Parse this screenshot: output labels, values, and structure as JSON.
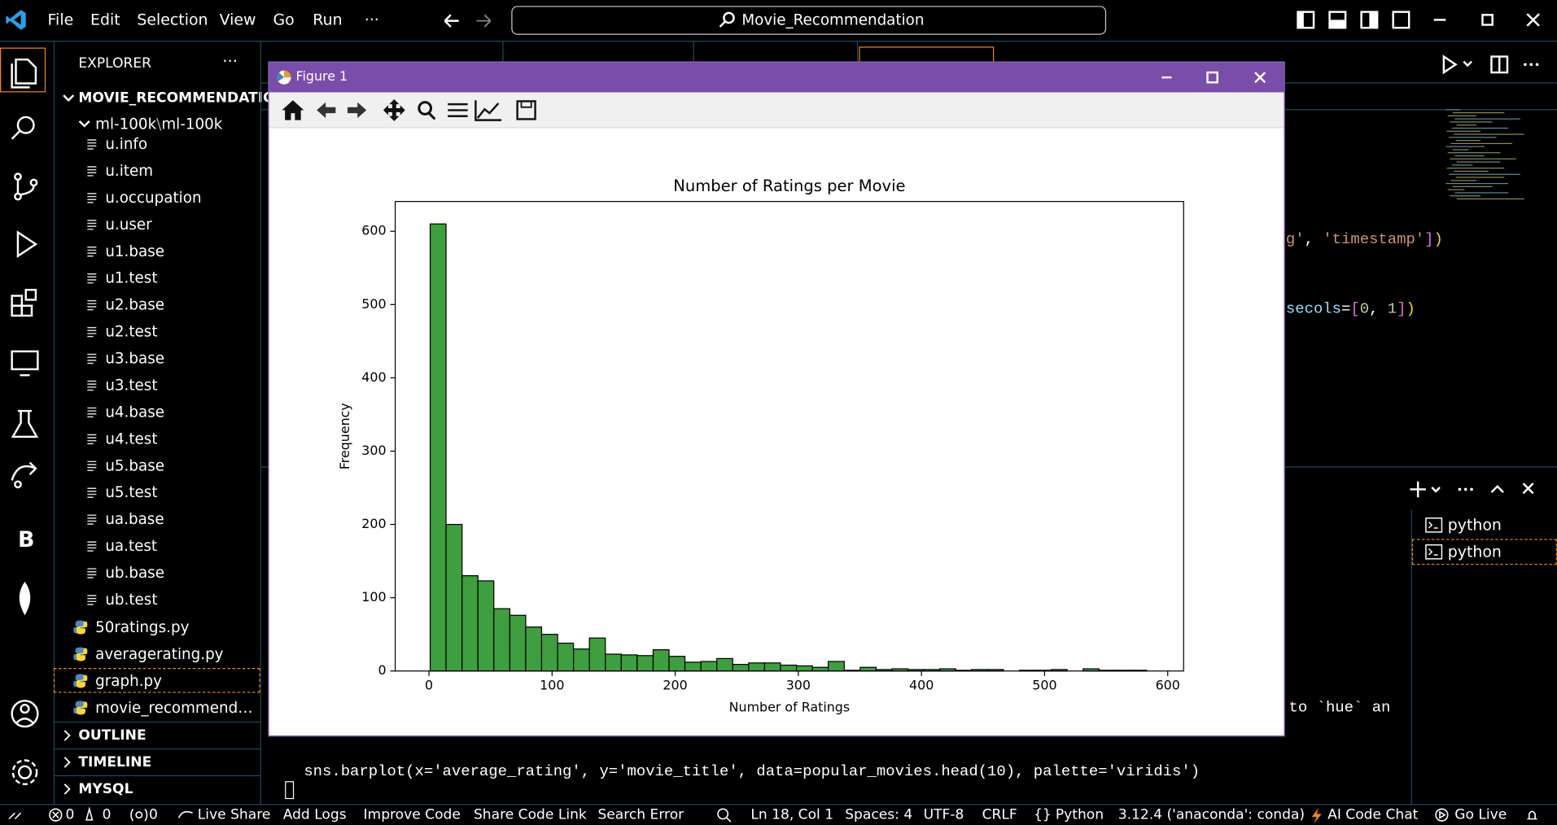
{
  "menu": {
    "items": [
      "File",
      "Edit",
      "Selection",
      "View",
      "Go",
      "Run",
      "···"
    ],
    "search": "Movie_Recommendation"
  },
  "activity_bar": {
    "extension_letter": "B"
  },
  "explorer": {
    "title": "EXPLORER",
    "more": "···",
    "project": "MOVIE_RECOMMENDATION",
    "folder": "ml-100k",
    "folder_sep": "\\",
    "subfolder": "ml-100k",
    "data_files": [
      "u.info",
      "u.item",
      "u.occupation",
      "u.user",
      "u1.base",
      "u1.test",
      "u2.base",
      "u2.test",
      "u3.base",
      "u3.test",
      "u4.base",
      "u4.test",
      "u5.base",
      "u5.test",
      "ua.base",
      "ua.test",
      "ub.base",
      "ub.test"
    ],
    "python_files": [
      "50ratings.py",
      "averagerating.py",
      "graph.py",
      "movie_recommender.py"
    ],
    "sections": [
      "OUTLINE",
      "TIMELINE",
      "MYSQL"
    ]
  },
  "editor": {
    "line_a": [
      "g'",
      ", ",
      "'timestamp'",
      "]",
      ")"
    ],
    "line_b": [
      "secols",
      "=",
      "[",
      "0",
      ", ",
      "1",
      "]",
      ")"
    ],
    "line_c": "to `hue` an"
  },
  "terminal": {
    "command": "sns.barplot(x='average_rating', y='movie_title', data=popular_movies.head(10), palette='viridis')",
    "tabs": [
      "python",
      "python"
    ]
  },
  "figure_window": {
    "title": "Figure 1"
  },
  "chart_data": {
    "type": "histogram",
    "title": "Number of Ratings per Movie",
    "x_label": "Number of Ratings",
    "y_label": "Frequency",
    "bins": [
      1,
      13.9,
      26.9,
      39.8,
      52.7,
      65.7,
      78.6,
      91.5,
      104.5,
      117.4,
      130.3,
      143.3,
      156.2,
      169.1,
      182.1,
      195,
      207.9,
      220.9,
      233.8,
      246.7,
      259.7,
      272.6,
      285.5,
      298.5,
      311.4,
      324.3,
      337.3,
      350.2,
      363.1,
      376.1,
      389,
      401.9,
      414.9,
      427.8,
      440.7,
      453.7,
      466.6,
      479.5,
      492.5,
      505.4,
      518.3,
      531.3,
      544.2,
      557.1,
      570.1,
      583
    ],
    "counts": [
      610,
      200,
      130,
      123,
      85,
      76,
      60,
      50,
      38,
      30,
      45,
      23,
      22,
      21,
      29,
      20,
      12,
      13,
      17,
      9,
      11,
      11,
      8,
      7,
      5,
      13,
      1,
      5,
      2,
      3,
      2,
      2,
      3,
      1,
      2,
      2,
      0,
      1,
      1,
      2,
      0,
      3,
      1,
      1,
      1
    ],
    "color": "#3f9e3f",
    "edge_color": "#000000",
    "xlim": [
      -27.4,
      612.9
    ],
    "ylim": [
      0,
      640.6
    ],
    "xticks": [
      0,
      100,
      200,
      300,
      400,
      500,
      600
    ],
    "yticks": [
      0,
      100,
      200,
      300,
      400,
      500,
      600
    ]
  },
  "status_bar": {
    "errors": 0,
    "warnings": 0,
    "ports": 0,
    "items_left": [
      "Live Share",
      "Add Logs",
      "Improve Code",
      "Share Code Link",
      "Search Error"
    ],
    "position": "Ln 18, Col 1",
    "spaces": "Spaces: 4",
    "encoding": "UTF-8",
    "eol": "CRLF",
    "lang_braces": "{}",
    "language": "Python",
    "interpreter": "3.12.4 ('anaconda': conda)",
    "ai": "AI Code Chat",
    "live": "Go Live"
  }
}
